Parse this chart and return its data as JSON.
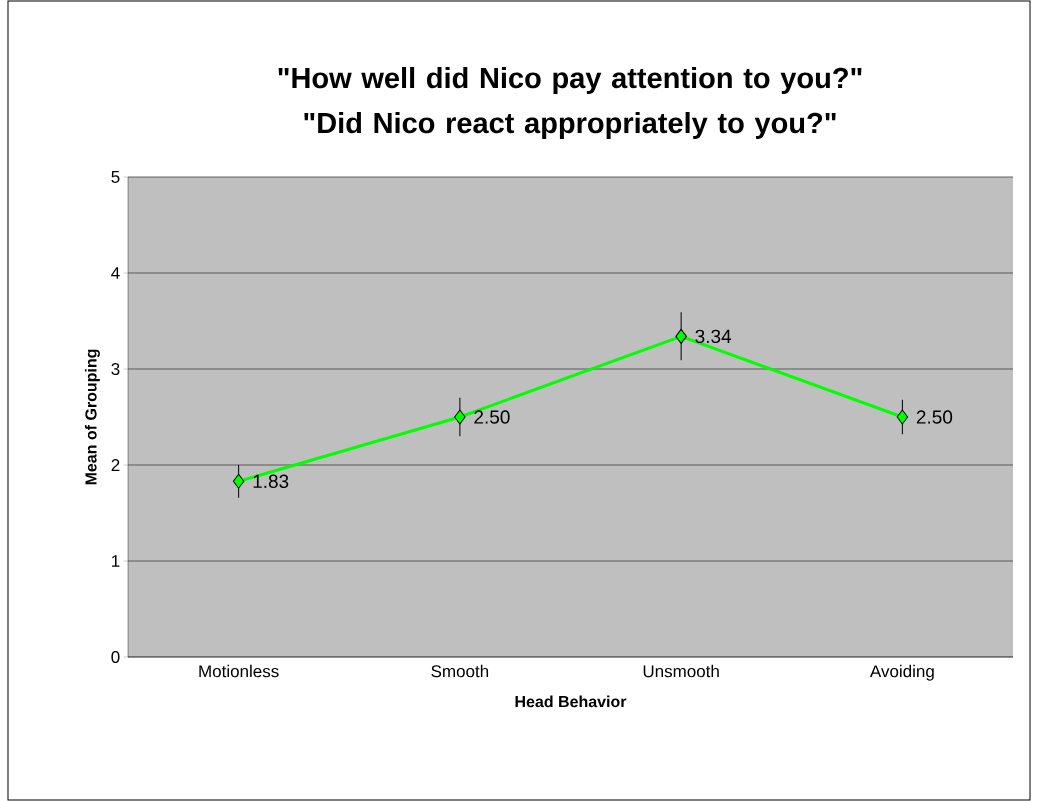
{
  "chart_data": {
    "type": "line",
    "title": "\"How well did Nico pay attention to you?\" \"Did Nico react appropriately to you?\"",
    "xlabel": "Head Behavior",
    "ylabel": "Mean of Grouping",
    "categories": [
      "Motionless",
      "Smooth",
      "Unsmooth",
      "Avoiding"
    ],
    "values": [
      1.83,
      2.5,
      3.34,
      2.5
    ],
    "value_labels": [
      "1.83",
      "2.50",
      "3.34",
      "2.50"
    ],
    "errors": [
      0.17,
      0.2,
      0.25,
      0.18
    ],
    "color": "#00ff00",
    "marker": "diamond",
    "line_style": "solid",
    "ylim": [
      0,
      5
    ],
    "yticks": [
      0,
      1,
      2,
      3,
      4,
      5
    ],
    "grid": "y"
  }
}
